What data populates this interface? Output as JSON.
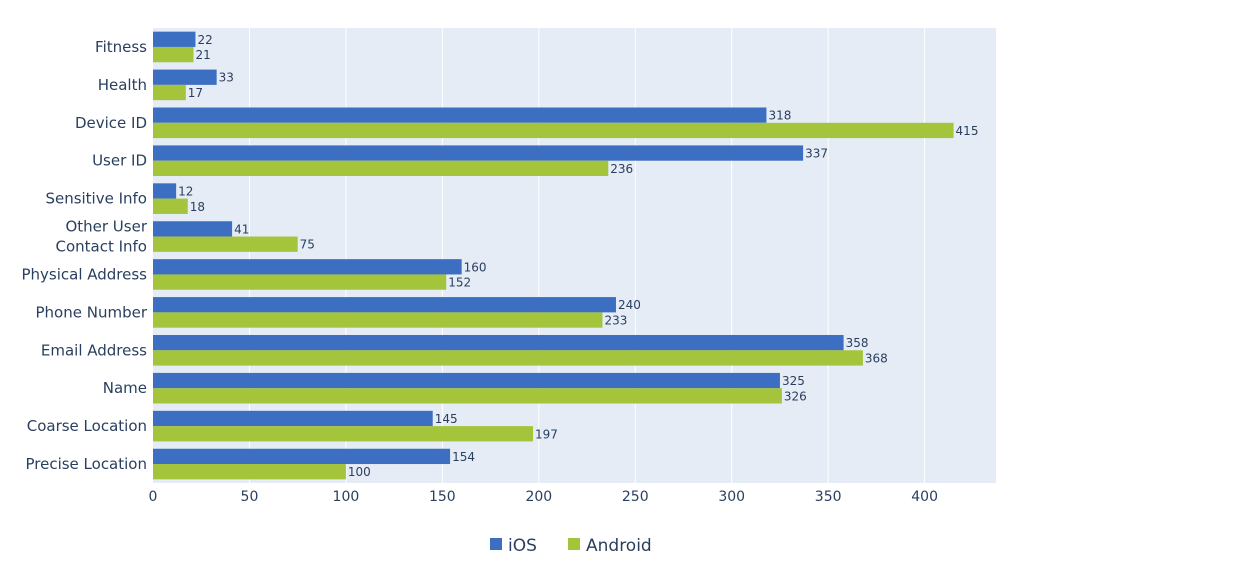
{
  "chart_data": {
    "type": "bar",
    "orientation": "horizontal",
    "categories": [
      "Fitness",
      "Health",
      "Device ID",
      "User ID",
      "Sensitive Info",
      "Other User Contact Info",
      "Physical Address",
      "Phone Number",
      "Email Address",
      "Name",
      "Coarse Location",
      "Precise Location"
    ],
    "category_lines": [
      [
        "Fitness"
      ],
      [
        "Health"
      ],
      [
        "Device ID"
      ],
      [
        "User ID"
      ],
      [
        "Sensitive Info"
      ],
      [
        "Other User",
        "Contact Info"
      ],
      [
        "Physical Address"
      ],
      [
        "Phone Number"
      ],
      [
        "Email Address"
      ],
      [
        "Name"
      ],
      [
        "Coarse Location"
      ],
      [
        "Precise Location"
      ]
    ],
    "series": [
      {
        "name": "iOS",
        "color": "#3c6fc2",
        "values": [
          22,
          33,
          318,
          337,
          12,
          41,
          160,
          240,
          358,
          325,
          145,
          154
        ]
      },
      {
        "name": "Android",
        "color": "#a3c43b",
        "values": [
          21,
          17,
          415,
          236,
          18,
          75,
          152,
          233,
          368,
          326,
          197,
          100
        ]
      }
    ],
    "xticks": [
      0,
      50,
      100,
      150,
      200,
      250,
      300,
      350,
      400
    ],
    "xlim": [
      0,
      437
    ],
    "title": "",
    "xlabel": "",
    "ylabel": "",
    "grid": true,
    "legend_position": "bottom-center",
    "plot_background": "#e5ecf6"
  }
}
